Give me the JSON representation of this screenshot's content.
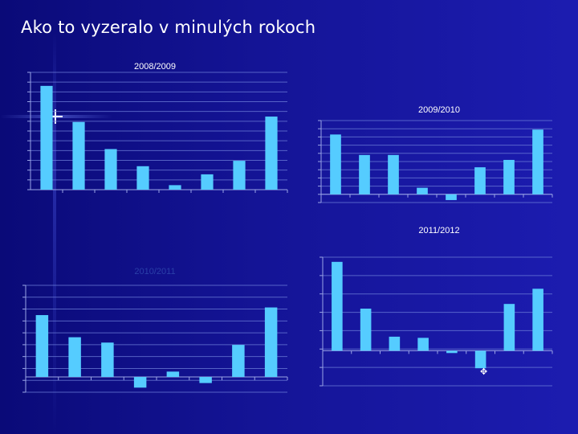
{
  "slide": {
    "title": "Ako to vyzeralo v minulých rokoch"
  },
  "colors": {
    "bar": "#55CCFF",
    "grid": "#6C7DD8",
    "axis": "#9AA4E6",
    "background": "#141496"
  },
  "chart_data": [
    {
      "type": "bar",
      "title": "2008/2009",
      "categories": [
        "",
        "",
        "",
        "",
        "",
        "",
        "",
        ""
      ],
      "values": [
        11.5,
        7.5,
        4.5,
        2.6,
        0.5,
        1.7,
        3.2,
        8.1
      ],
      "ylim": [
        0,
        13
      ],
      "grid": true
    },
    {
      "type": "bar",
      "title": "2009/2010",
      "categories": [
        "",
        "",
        "",
        "",
        "",
        "",
        "",
        ""
      ],
      "values": [
        7.3,
        4.8,
        4.8,
        0.8,
        -0.7,
        3.3,
        4.2,
        7.9
      ],
      "ylim": [
        -1,
        9
      ],
      "grid": true
    },
    {
      "type": "bar",
      "title": "2010/2011",
      "categories": [
        "",
        "",
        "",
        "",
        "",
        "",
        "",
        ""
      ],
      "values": [
        8.1,
        5.2,
        4.5,
        -1.4,
        0.7,
        -0.8,
        4.2,
        9.1
      ],
      "ylim": [
        -2,
        12
      ],
      "grid": true
    },
    {
      "type": "bar",
      "title": "2011/2012",
      "categories": [
        "",
        "",
        "",
        "",
        "",
        "",
        "",
        ""
      ],
      "values": [
        7.6,
        3.6,
        1.2,
        1.1,
        -0.2,
        -1.5,
        4.0,
        5.3
      ],
      "ylim": [
        -3,
        8
      ],
      "grid": true
    }
  ]
}
